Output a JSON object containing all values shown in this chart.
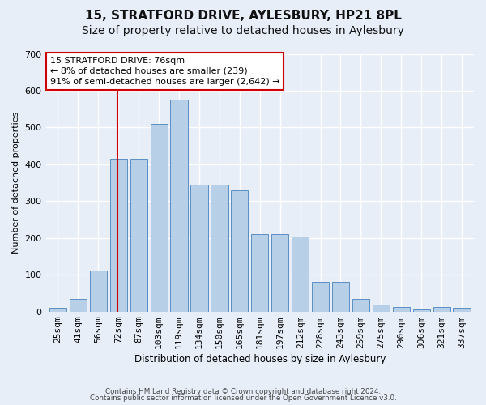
{
  "title": "15, STRATFORD DRIVE, AYLESBURY, HP21 8PL",
  "subtitle": "Size of property relative to detached houses in Aylesbury",
  "xlabel": "Distribution of detached houses by size in Aylesbury",
  "ylabel": "Number of detached properties",
  "categories": [
    "25sqm",
    "41sqm",
    "56sqm",
    "72sqm",
    "87sqm",
    "103sqm",
    "119sqm",
    "134sqm",
    "150sqm",
    "165sqm",
    "181sqm",
    "197sqm",
    "212sqm",
    "228sqm",
    "243sqm",
    "259sqm",
    "275sqm",
    "290sqm",
    "306sqm",
    "321sqm",
    "337sqm"
  ],
  "values": [
    10,
    35,
    112,
    415,
    415,
    510,
    575,
    345,
    345,
    330,
    210,
    210,
    205,
    80,
    80,
    35,
    20,
    13,
    5,
    13,
    10
  ],
  "bar_color": "#b8cfe8",
  "bar_edge_color": "#5a8fc4",
  "annotation_title": "15 STRATFORD DRIVE: 76sqm",
  "annotation_line1": "← 8% of detached houses are smaller (239)",
  "annotation_line2": "91% of semi-detached houses are larger (2,642) →",
  "vline_color": "#cc0000",
  "vline_position": 2.95,
  "footer1": "Contains HM Land Registry data © Crown copyright and database right 2024.",
  "footer2": "Contains public sector information licensed under the Open Government Licence v3.0.",
  "ylim": [
    0,
    700
  ],
  "background_color": "#e8eef8",
  "plot_background": "#e8eef8",
  "grid_color": "#ffffff",
  "title_fontsize": 11,
  "subtitle_fontsize": 10,
  "annotation_box_color": "#ffffff",
  "annotation_box_edge": "#cc0000",
  "ann_fontsize": 8
}
